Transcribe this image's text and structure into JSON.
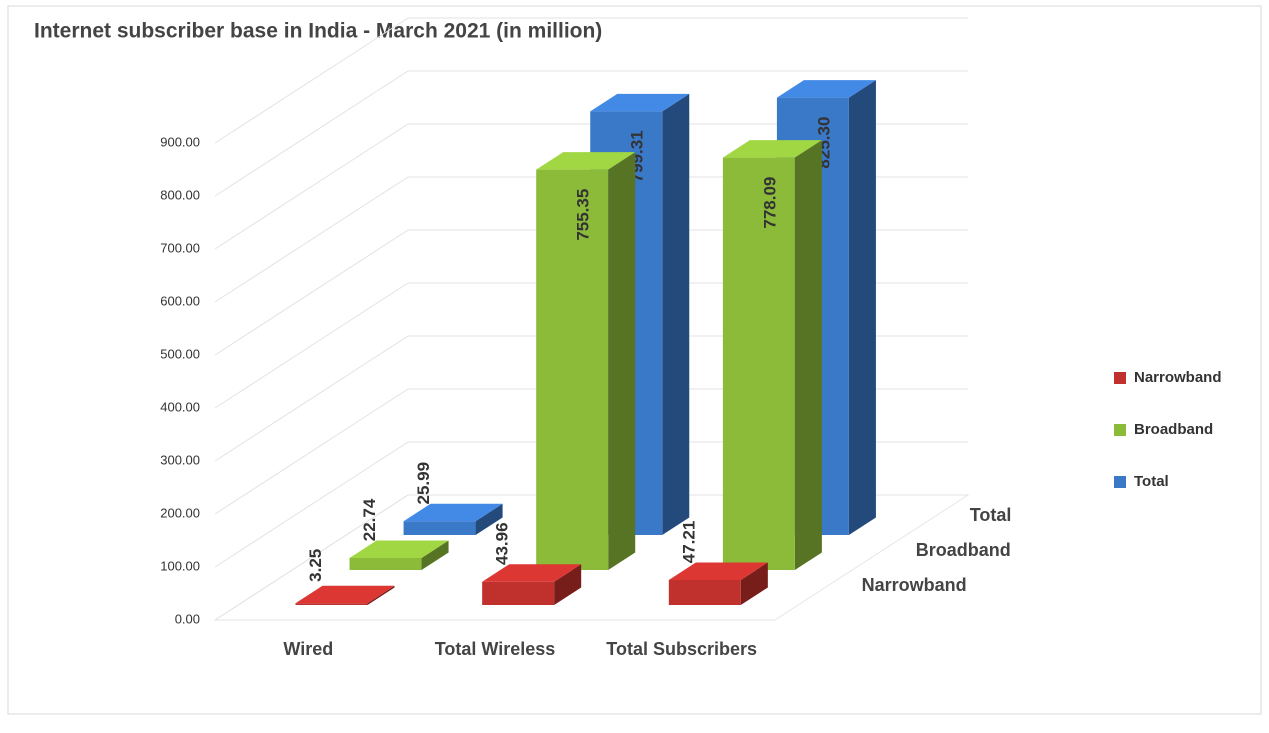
{
  "chart_data": {
    "type": "bar3d",
    "title": "Internet subscriber base in India - March 2021 (in million)",
    "categories": [
      "Wired",
      "Total Wireless",
      "Total Subscribers"
    ],
    "series": [
      {
        "name": "Narrowband",
        "color": "#c0302c",
        "values": [
          3.25,
          43.96,
          47.21
        ],
        "value_labels": [
          "3.25",
          "43.96",
          "47.21"
        ]
      },
      {
        "name": "Broadband",
        "color": "#8cbb3a",
        "values": [
          22.74,
          755.35,
          778.09
        ],
        "value_labels": [
          "22.74",
          "755.35",
          "778.09"
        ]
      },
      {
        "name": "Total",
        "color": "#3a78c8",
        "values": [
          25.99,
          799.31,
          825.3
        ],
        "value_labels": [
          "25.99",
          "799.31",
          "825.30"
        ]
      }
    ],
    "ylim": [
      0,
      1000
    ],
    "yticks": [
      {
        "value": 0,
        "label": "0.00"
      },
      {
        "value": 100,
        "label": "100.00"
      },
      {
        "value": 200,
        "label": "200.00"
      },
      {
        "value": 300,
        "label": "300.00"
      },
      {
        "value": 400,
        "label": "400.00"
      },
      {
        "value": 500,
        "label": "500.00"
      },
      {
        "value": 600,
        "label": "600.00"
      },
      {
        "value": 700,
        "label": "700.00"
      },
      {
        "value": 800,
        "label": "800.00"
      },
      {
        "value": 900,
        "label": "900.00"
      }
    ],
    "grid": true,
    "legend": "right"
  }
}
